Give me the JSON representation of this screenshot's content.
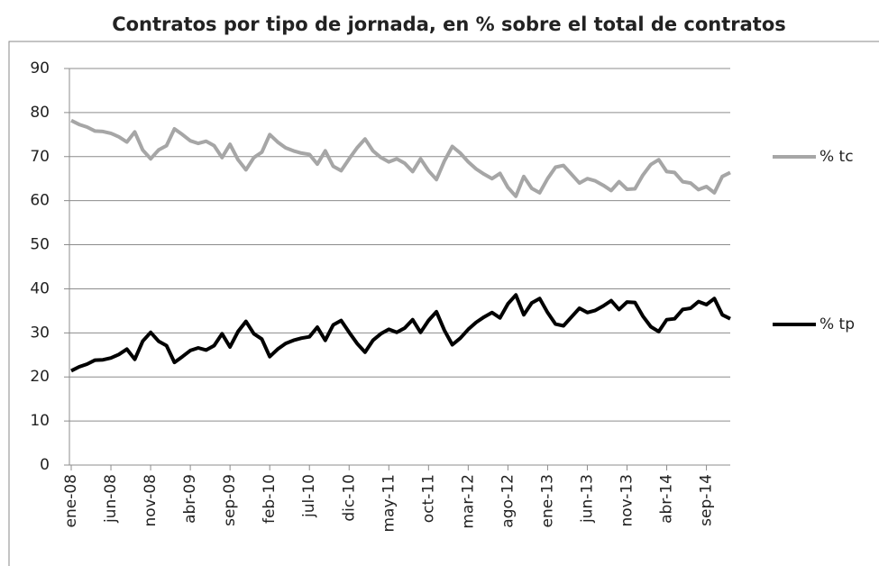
{
  "chart_data": {
    "type": "line",
    "title": "Contratos por tipo  de jornada, en % sobre el total de contratos",
    "categories": [
      "ene-08",
      null,
      null,
      null,
      null,
      "jun-08",
      null,
      null,
      null,
      null,
      "nov-08",
      null,
      null,
      null,
      null,
      "abr-09",
      null,
      null,
      null,
      null,
      "sep-09",
      null,
      null,
      null,
      null,
      "feb-10",
      null,
      null,
      null,
      null,
      "jul-10",
      null,
      null,
      null,
      null,
      "dic-10",
      null,
      null,
      null,
      null,
      "may-11",
      null,
      null,
      null,
      null,
      "oct-11",
      null,
      null,
      null,
      null,
      "mar-12",
      null,
      null,
      null,
      null,
      "ago-12",
      null,
      null,
      null,
      null,
      "ene-13",
      null,
      null,
      null,
      null,
      "jun-13",
      null,
      null,
      null,
      null,
      "nov-13",
      null,
      null,
      null,
      null,
      "abr-14",
      null,
      null,
      null,
      null,
      "sep-14",
      null,
      null,
      null
    ],
    "series": [
      {
        "name": "% tc",
        "color": "#a6a6a6",
        "values": [
          78.2,
          77.3,
          76.7,
          75.8,
          75.7,
          75.3,
          74.5,
          73.3,
          75.6,
          71.5,
          69.5,
          71.5,
          72.5,
          76.3,
          75.0,
          73.6,
          73.0,
          73.5,
          72.5,
          69.8,
          72.8,
          69.3,
          67.0,
          69.8,
          71.0,
          75.0,
          73.3,
          72.0,
          71.3,
          70.8,
          70.5,
          68.3,
          71.3,
          67.8,
          66.8,
          69.5,
          72.0,
          74.0,
          71.3,
          69.8,
          68.8,
          69.5,
          68.5,
          66.6,
          69.5,
          66.8,
          64.8,
          69.0,
          72.3,
          70.8,
          68.8,
          67.2,
          66.0,
          65.0,
          66.2,
          63.0,
          61.0,
          65.5,
          62.8,
          61.8,
          65.0,
          67.6,
          68.0,
          66.0,
          64.0,
          65.0,
          64.5,
          63.5,
          62.3,
          64.3,
          62.6,
          62.7,
          65.8,
          68.2,
          69.3,
          66.6,
          66.4,
          64.3,
          64.0,
          62.5,
          63.2,
          61.8,
          65.5,
          66.4
        ]
      },
      {
        "name": "% tp",
        "color": "#000000",
        "values": [
          21.4,
          22.3,
          22.9,
          23.8,
          23.9,
          24.3,
          25.1,
          26.3,
          24.0,
          28.1,
          30.1,
          28.1,
          27.1,
          23.3,
          24.6,
          26.0,
          26.6,
          26.1,
          27.1,
          29.8,
          26.8,
          30.3,
          32.6,
          29.8,
          28.6,
          24.6,
          26.3,
          27.6,
          28.3,
          28.8,
          29.1,
          31.3,
          28.3,
          31.8,
          32.8,
          30.1,
          27.6,
          25.6,
          28.3,
          29.8,
          30.8,
          30.1,
          31.1,
          33.0,
          30.1,
          32.8,
          34.8,
          30.6,
          27.3,
          28.8,
          30.8,
          32.4,
          33.6,
          34.6,
          33.4,
          36.6,
          38.6,
          34.1,
          36.8,
          37.8,
          34.6,
          32.0,
          31.6,
          33.6,
          35.6,
          34.6,
          35.1,
          36.1,
          37.3,
          35.3,
          37.0,
          36.9,
          33.8,
          31.4,
          30.3,
          33.0,
          33.2,
          35.3,
          35.6,
          37.1,
          36.4,
          37.8,
          34.1,
          33.2
        ]
      }
    ],
    "ylim": [
      0,
      90
    ],
    "yticks": [
      0,
      10,
      20,
      30,
      40,
      50,
      60,
      70,
      80,
      90
    ],
    "grid": true,
    "legend": "right"
  }
}
